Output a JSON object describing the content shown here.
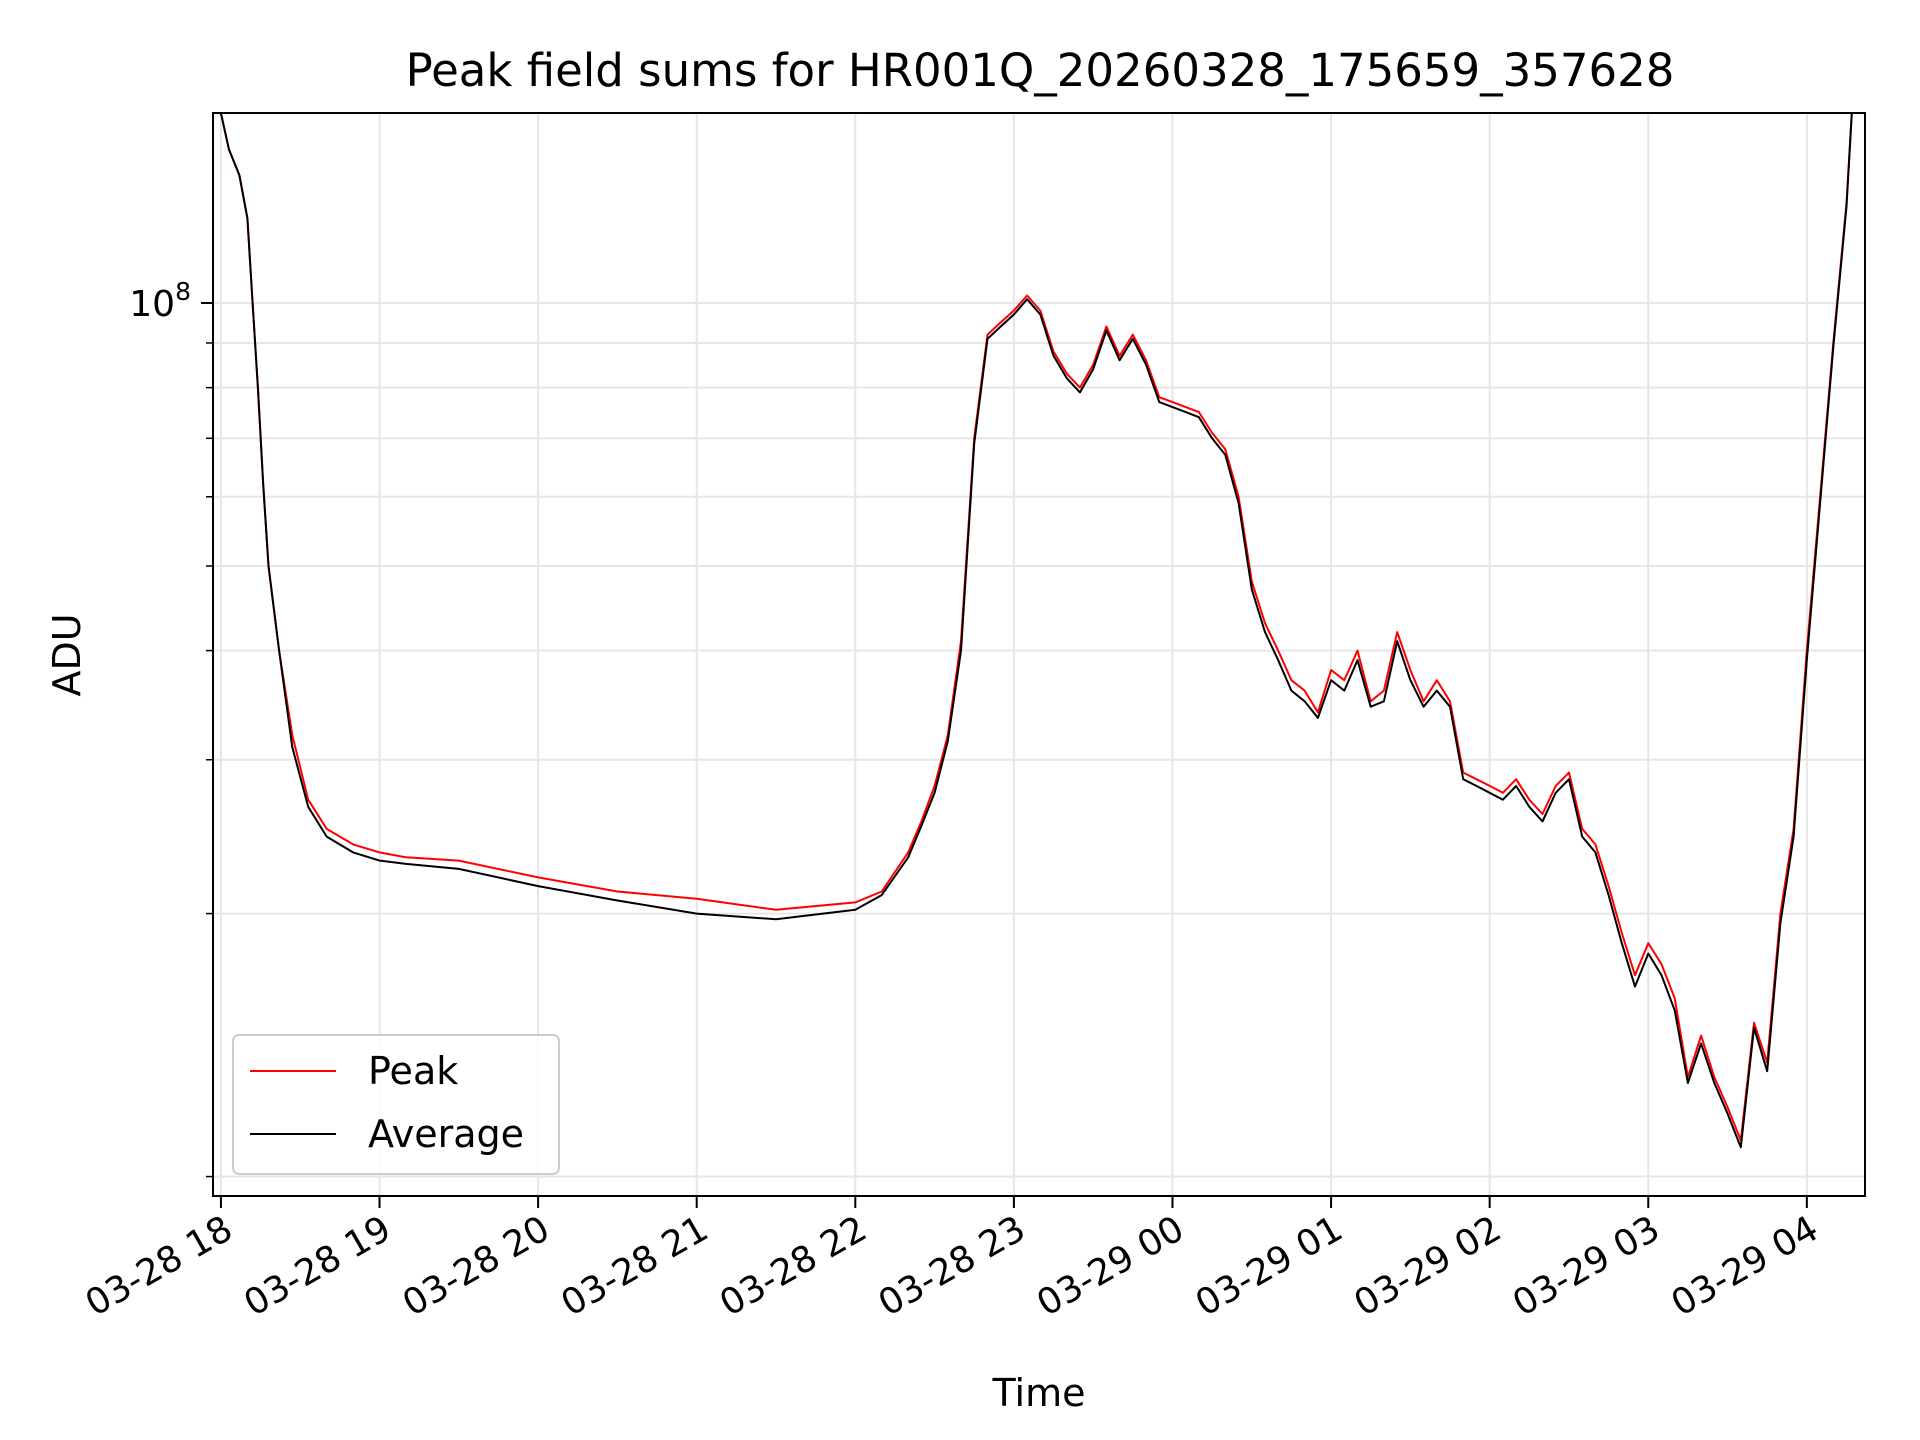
{
  "chart_data": {
    "type": "line",
    "title": "Peak field sums for HR001Q_20260328_175659_357628",
    "xlabel": "Time",
    "ylabel": "ADU",
    "y_scale": "log",
    "ylim": [
      9500000,
      165000000
    ],
    "xlim": [
      "2026-03-28 17:57",
      "2026-03-29 04:22"
    ],
    "grid": true,
    "legend_position": "lower-left",
    "x_tick_labels": [
      "03-28 18",
      "03-28 19",
      "03-28 20",
      "03-28 21",
      "03-28 22",
      "03-28 23",
      "03-29 00",
      "03-29 01",
      "03-29 02",
      "03-29 03",
      "03-29 04"
    ],
    "x_tick_times": [
      "2026-03-28 18:00",
      "2026-03-28 19:00",
      "2026-03-28 20:00",
      "2026-03-28 21:00",
      "2026-03-28 22:00",
      "2026-03-28 23:00",
      "2026-03-29 00:00",
      "2026-03-29 01:00",
      "2026-03-29 02:00",
      "2026-03-29 03:00",
      "2026-03-29 04:00"
    ],
    "y_tick_label": "10^8",
    "y_major_tick": 100000000,
    "y_minor_ticks": [
      10000000,
      20000000,
      30000000,
      40000000,
      50000000,
      60000000,
      70000000,
      80000000,
      90000000,
      200000000
    ],
    "series": [
      {
        "name": "Peak",
        "color": "#ff0000",
        "x": [
          "2026-03-28 18:00",
          "2026-03-28 18:03",
          "2026-03-28 18:07",
          "2026-03-28 18:10",
          "2026-03-28 18:12",
          "2026-03-28 18:14",
          "2026-03-28 18:16",
          "2026-03-28 18:18",
          "2026-03-28 18:22",
          "2026-03-28 18:27",
          "2026-03-28 18:33",
          "2026-03-28 18:40",
          "2026-03-28 18:50",
          "2026-03-28 19:00",
          "2026-03-28 19:10",
          "2026-03-28 19:30",
          "2026-03-28 20:00",
          "2026-03-28 20:30",
          "2026-03-28 21:00",
          "2026-03-28 21:30",
          "2026-03-28 22:00",
          "2026-03-28 22:10",
          "2026-03-28 22:20",
          "2026-03-28 22:25",
          "2026-03-28 22:30",
          "2026-03-28 22:35",
          "2026-03-28 22:40",
          "2026-03-28 22:45",
          "2026-03-28 22:50",
          "2026-03-28 22:55",
          "2026-03-28 23:00",
          "2026-03-28 23:05",
          "2026-03-28 23:10",
          "2026-03-28 23:15",
          "2026-03-28 23:20",
          "2026-03-28 23:25",
          "2026-03-28 23:30",
          "2026-03-28 23:35",
          "2026-03-28 23:40",
          "2026-03-28 23:45",
          "2026-03-28 23:50",
          "2026-03-28 23:55",
          "2026-03-29 00:00",
          "2026-03-29 00:05",
          "2026-03-29 00:10",
          "2026-03-29 00:15",
          "2026-03-29 00:20",
          "2026-03-29 00:25",
          "2026-03-29 00:30",
          "2026-03-29 00:35",
          "2026-03-29 00:40",
          "2026-03-29 00:45",
          "2026-03-29 00:50",
          "2026-03-29 00:55",
          "2026-03-29 01:00",
          "2026-03-29 01:05",
          "2026-03-29 01:10",
          "2026-03-29 01:15",
          "2026-03-29 01:20",
          "2026-03-29 01:25",
          "2026-03-29 01:30",
          "2026-03-29 01:35",
          "2026-03-29 01:40",
          "2026-03-29 01:45",
          "2026-03-29 01:50",
          "2026-03-29 01:55",
          "2026-03-29 02:00",
          "2026-03-29 02:05",
          "2026-03-29 02:10",
          "2026-03-29 02:15",
          "2026-03-29 02:20",
          "2026-03-29 02:25",
          "2026-03-29 02:30",
          "2026-03-29 02:35",
          "2026-03-29 02:40",
          "2026-03-29 02:45",
          "2026-03-29 02:50",
          "2026-03-29 02:55",
          "2026-03-29 03:00",
          "2026-03-29 03:05",
          "2026-03-29 03:10",
          "2026-03-29 03:15",
          "2026-03-29 03:20",
          "2026-03-29 03:25",
          "2026-03-29 03:30",
          "2026-03-29 03:35",
          "2026-03-29 03:40",
          "2026-03-29 03:45",
          "2026-03-29 03:50",
          "2026-03-29 03:55",
          "2026-03-29 04:00",
          "2026-03-29 04:05",
          "2026-03-29 04:10",
          "2026-03-29 04:15",
          "2026-03-29 04:17"
        ],
        "y": [
          165000000,
          150000000,
          140000000,
          125000000,
          100000000,
          80000000,
          62000000,
          50000000,
          40000000,
          32000000,
          27000000,
          25000000,
          24000000,
          23500000,
          23200000,
          23000000,
          22000000,
          21200000,
          20800000,
          20200000,
          20600000,
          21200000,
          23500000,
          25500000,
          28000000,
          32000000,
          41000000,
          70000000,
          92000000,
          95000000,
          98000000,
          102000000,
          98000000,
          88000000,
          83000000,
          80000000,
          85000000,
          94000000,
          87000000,
          92000000,
          86000000,
          78000000,
          77000000,
          76000000,
          75000000,
          71000000,
          68000000,
          60000000,
          48000000,
          43000000,
          40000000,
          37000000,
          36000000,
          34000000,
          38000000,
          37000000,
          40000000,
          35000000,
          36000000,
          42000000,
          38000000,
          35000000,
          37000000,
          35000000,
          29000000,
          28500000,
          28000000,
          27500000,
          28500000,
          27000000,
          26000000,
          28000000,
          29000000,
          25000000,
          24000000,
          21500000,
          19000000,
          17000000,
          18500000,
          17500000,
          16000000,
          13000000,
          14500000,
          13000000,
          12000000,
          11000000,
          15000000,
          13500000,
          20000000,
          25000000,
          40000000,
          60000000,
          90000000,
          130000000,
          165000000
        ]
      },
      {
        "name": "Average",
        "color": "#000000",
        "x": [
          "2026-03-28 18:00",
          "2026-03-28 18:03",
          "2026-03-28 18:07",
          "2026-03-28 18:10",
          "2026-03-28 18:12",
          "2026-03-28 18:14",
          "2026-03-28 18:16",
          "2026-03-28 18:18",
          "2026-03-28 18:22",
          "2026-03-28 18:27",
          "2026-03-28 18:33",
          "2026-03-28 18:40",
          "2026-03-28 18:50",
          "2026-03-28 19:00",
          "2026-03-28 19:10",
          "2026-03-28 19:30",
          "2026-03-28 20:00",
          "2026-03-28 20:30",
          "2026-03-28 21:00",
          "2026-03-28 21:30",
          "2026-03-28 22:00",
          "2026-03-28 22:10",
          "2026-03-28 22:20",
          "2026-03-28 22:25",
          "2026-03-28 22:30",
          "2026-03-28 22:35",
          "2026-03-28 22:40",
          "2026-03-28 22:45",
          "2026-03-28 22:50",
          "2026-03-28 22:55",
          "2026-03-28 23:00",
          "2026-03-28 23:05",
          "2026-03-28 23:10",
          "2026-03-28 23:15",
          "2026-03-28 23:20",
          "2026-03-28 23:25",
          "2026-03-28 23:30",
          "2026-03-28 23:35",
          "2026-03-28 23:40",
          "2026-03-28 23:45",
          "2026-03-28 23:50",
          "2026-03-28 23:55",
          "2026-03-29 00:00",
          "2026-03-29 00:05",
          "2026-03-29 00:10",
          "2026-03-29 00:15",
          "2026-03-29 00:20",
          "2026-03-29 00:25",
          "2026-03-29 00:30",
          "2026-03-29 00:35",
          "2026-03-29 00:40",
          "2026-03-29 00:45",
          "2026-03-29 00:50",
          "2026-03-29 00:55",
          "2026-03-29 01:00",
          "2026-03-29 01:05",
          "2026-03-29 01:10",
          "2026-03-29 01:15",
          "2026-03-29 01:20",
          "2026-03-29 01:25",
          "2026-03-29 01:30",
          "2026-03-29 01:35",
          "2026-03-29 01:40",
          "2026-03-29 01:45",
          "2026-03-29 01:50",
          "2026-03-29 01:55",
          "2026-03-29 02:00",
          "2026-03-29 02:05",
          "2026-03-29 02:10",
          "2026-03-29 02:15",
          "2026-03-29 02:20",
          "2026-03-29 02:25",
          "2026-03-29 02:30",
          "2026-03-29 02:35",
          "2026-03-29 02:40",
          "2026-03-29 02:45",
          "2026-03-29 02:50",
          "2026-03-29 02:55",
          "2026-03-29 03:00",
          "2026-03-29 03:05",
          "2026-03-29 03:10",
          "2026-03-29 03:15",
          "2026-03-29 03:20",
          "2026-03-29 03:25",
          "2026-03-29 03:30",
          "2026-03-29 03:35",
          "2026-03-29 03:40",
          "2026-03-29 03:45",
          "2026-03-29 03:50",
          "2026-03-29 03:55",
          "2026-03-29 04:00",
          "2026-03-29 04:05",
          "2026-03-29 04:10",
          "2026-03-29 04:15",
          "2026-03-29 04:17"
        ],
        "y": [
          165000000,
          150000000,
          140000000,
          125000000,
          100000000,
          80000000,
          62000000,
          50000000,
          40000000,
          31000000,
          26500000,
          24500000,
          23500000,
          23000000,
          22800000,
          22500000,
          21500000,
          20700000,
          20000000,
          19700000,
          20200000,
          21000000,
          23200000,
          25200000,
          27500000,
          31500000,
          40000000,
          69000000,
          91000000,
          94000000,
          97000000,
          101000000,
          97000000,
          87000000,
          82000000,
          79000000,
          84000000,
          93000000,
          86000000,
          91000000,
          85000000,
          77000000,
          76000000,
          75000000,
          74000000,
          70000000,
          67000000,
          59000000,
          47000000,
          42000000,
          39000000,
          36000000,
          35000000,
          33500000,
          37000000,
          36000000,
          39000000,
          34500000,
          35000000,
          41000000,
          37000000,
          34500000,
          36000000,
          34500000,
          28500000,
          28000000,
          27500000,
          27000000,
          28000000,
          26500000,
          25500000,
          27500000,
          28500000,
          24500000,
          23500000,
          21000000,
          18500000,
          16500000,
          18000000,
          17000000,
          15500000,
          12800000,
          14200000,
          12800000,
          11800000,
          10800000,
          14800000,
          13200000,
          19500000,
          24500000,
          39000000,
          59000000,
          89000000,
          129000000,
          165000000
        ]
      }
    ]
  }
}
